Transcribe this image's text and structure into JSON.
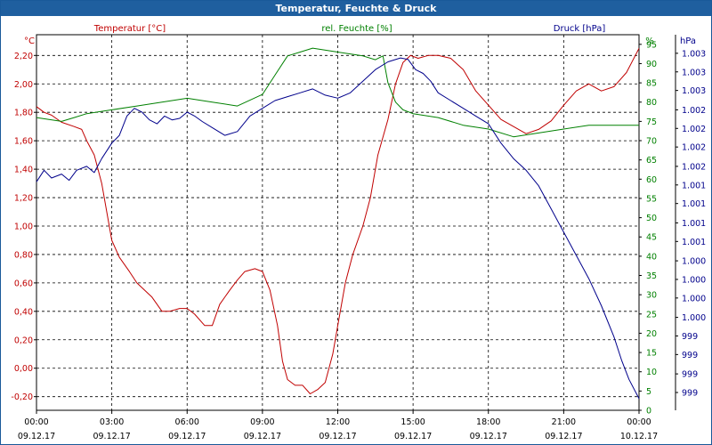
{
  "window": {
    "title": "Temperatur, Feuchte & Druck"
  },
  "chart_data": {
    "type": "line",
    "series": [
      {
        "name": "Temperatur [°C]",
        "unit_label": "°C",
        "axis": "left",
        "color": "#c00000",
        "ylim": [
          -0.2959,
          2.3459
        ],
        "ticks": [
          "-0,20",
          "0,00",
          "0,20",
          "0,40",
          "0,60",
          "0,80",
          "1,00",
          "1,20",
          "1,40",
          "1,60",
          "1,80",
          "2,00",
          "2,20"
        ],
        "tick_values": [
          -0.2,
          0,
          0.2,
          0.4,
          0.6,
          0.8,
          1.0,
          1.2,
          1.4,
          1.6,
          1.8,
          2.0,
          2.2
        ],
        "points": [
          [
            0,
            1.84
          ],
          [
            0.3,
            1.8
          ],
          [
            0.6,
            1.78
          ],
          [
            1,
            1.73
          ],
          [
            1.5,
            1.7
          ],
          [
            1.8,
            1.68
          ],
          [
            2,
            1.6
          ],
          [
            2.3,
            1.5
          ],
          [
            2.6,
            1.3
          ],
          [
            3,
            0.9
          ],
          [
            3.3,
            0.78
          ],
          [
            3.7,
            0.68
          ],
          [
            4,
            0.6
          ],
          [
            4.3,
            0.55
          ],
          [
            4.6,
            0.5
          ],
          [
            5,
            0.4
          ],
          [
            5.3,
            0.4
          ],
          [
            5.7,
            0.42
          ],
          [
            6,
            0.42
          ],
          [
            6.3,
            0.38
          ],
          [
            6.7,
            0.3
          ],
          [
            7,
            0.3
          ],
          [
            7.3,
            0.45
          ],
          [
            7.7,
            0.55
          ],
          [
            8,
            0.62
          ],
          [
            8.3,
            0.68
          ],
          [
            8.7,
            0.7
          ],
          [
            9,
            0.68
          ],
          [
            9.3,
            0.55
          ],
          [
            9.6,
            0.3
          ],
          [
            9.8,
            0.05
          ],
          [
            10,
            -0.08
          ],
          [
            10.3,
            -0.12
          ],
          [
            10.6,
            -0.12
          ],
          [
            10.9,
            -0.18
          ],
          [
            11.2,
            -0.15
          ],
          [
            11.5,
            -0.1
          ],
          [
            11.8,
            0.1
          ],
          [
            12,
            0.3
          ],
          [
            12.3,
            0.6
          ],
          [
            12.6,
            0.8
          ],
          [
            13,
            1.0
          ],
          [
            13.3,
            1.2
          ],
          [
            13.6,
            1.5
          ],
          [
            14,
            1.75
          ],
          [
            14.3,
            2.0
          ],
          [
            14.6,
            2.15
          ],
          [
            14.9,
            2.2
          ],
          [
            15.2,
            2.18
          ],
          [
            15.6,
            2.2
          ],
          [
            16,
            2.2
          ],
          [
            16.5,
            2.18
          ],
          [
            17,
            2.1
          ],
          [
            17.5,
            1.95
          ],
          [
            18,
            1.85
          ],
          [
            18.5,
            1.75
          ],
          [
            19,
            1.7
          ],
          [
            19.5,
            1.65
          ],
          [
            20,
            1.68
          ],
          [
            20.5,
            1.74
          ],
          [
            21,
            1.85
          ],
          [
            21.5,
            1.95
          ],
          [
            22,
            2.0
          ],
          [
            22.5,
            1.95
          ],
          [
            23,
            1.98
          ],
          [
            23.5,
            2.08
          ],
          [
            24,
            2.25
          ]
        ]
      },
      {
        "name": "rel. Feuchte [%]",
        "unit_label": "%",
        "axis": "right1",
        "color": "#008000",
        "ylim": [
          0,
          97.5
        ],
        "ticks": [
          "0",
          "5",
          "10",
          "15",
          "20",
          "25",
          "30",
          "35",
          "40",
          "45",
          "50",
          "55",
          "60",
          "65",
          "70",
          "75",
          "80",
          "85",
          "90",
          "95"
        ],
        "tick_values": [
          0,
          5,
          10,
          15,
          20,
          25,
          30,
          35,
          40,
          45,
          50,
          55,
          60,
          65,
          70,
          75,
          80,
          85,
          90,
          95
        ],
        "points": [
          [
            0,
            76
          ],
          [
            0.5,
            75.5
          ],
          [
            1,
            75
          ],
          [
            1.5,
            76
          ],
          [
            2,
            77
          ],
          [
            3,
            78
          ],
          [
            4,
            79
          ],
          [
            5,
            80
          ],
          [
            6,
            81
          ],
          [
            7,
            80
          ],
          [
            8,
            79
          ],
          [
            9,
            82
          ],
          [
            9.5,
            87
          ],
          [
            10,
            92
          ],
          [
            10.5,
            93
          ],
          [
            11,
            94
          ],
          [
            12,
            93
          ],
          [
            13,
            92
          ],
          [
            13.5,
            91
          ],
          [
            13.8,
            92
          ],
          [
            14,
            85
          ],
          [
            14.3,
            80
          ],
          [
            14.6,
            78
          ],
          [
            15,
            77
          ],
          [
            16,
            76
          ],
          [
            17,
            74
          ],
          [
            18,
            73
          ],
          [
            19,
            71
          ],
          [
            20,
            72
          ],
          [
            21,
            73
          ],
          [
            22,
            74
          ],
          [
            23,
            74
          ],
          [
            24,
            74
          ]
        ]
      },
      {
        "name": "Druck [hPa]",
        "unit_label": "hPa",
        "axis": "right2",
        "color": "#00008b",
        "ylim": [
          998.65,
          1003.5
        ],
        "ticks": [
          "999",
          "999",
          "999",
          "999",
          "1.000",
          "1.000",
          "1.000",
          "1.000",
          "1.001",
          "1.001",
          "1.001",
          "1.001",
          "1.002",
          "1.002",
          "1.002",
          "1.002",
          "1.003",
          "1.003",
          "1.003"
        ],
        "tick_values": [
          998.88,
          999.12,
          999.37,
          999.61,
          999.85,
          1000.1,
          1000.34,
          1000.58,
          1000.83,
          1001.07,
          1001.32,
          1001.56,
          1001.8,
          1002.05,
          1002.29,
          1002.53,
          1002.78,
          1003.02,
          1003.26
        ],
        "points": [
          [
            0,
            1001.6
          ],
          [
            0.3,
            1001.75
          ],
          [
            0.6,
            1001.65
          ],
          [
            1,
            1001.7
          ],
          [
            1.3,
            1001.62
          ],
          [
            1.6,
            1001.75
          ],
          [
            2,
            1001.8
          ],
          [
            2.3,
            1001.72
          ],
          [
            2.6,
            1001.9
          ],
          [
            3,
            1002.1
          ],
          [
            3.3,
            1002.2
          ],
          [
            3.6,
            1002.45
          ],
          [
            3.9,
            1002.55
          ],
          [
            4.2,
            1002.5
          ],
          [
            4.5,
            1002.4
          ],
          [
            4.8,
            1002.35
          ],
          [
            5.1,
            1002.45
          ],
          [
            5.4,
            1002.4
          ],
          [
            5.7,
            1002.42
          ],
          [
            6,
            1002.5
          ],
          [
            6.3,
            1002.45
          ],
          [
            6.6,
            1002.38
          ],
          [
            7,
            1002.3
          ],
          [
            7.5,
            1002.2
          ],
          [
            8,
            1002.25
          ],
          [
            8.5,
            1002.45
          ],
          [
            9,
            1002.55
          ],
          [
            9.5,
            1002.65
          ],
          [
            10,
            1002.7
          ],
          [
            10.5,
            1002.75
          ],
          [
            11,
            1002.8
          ],
          [
            11.5,
            1002.72
          ],
          [
            12,
            1002.68
          ],
          [
            12.5,
            1002.75
          ],
          [
            13,
            1002.9
          ],
          [
            13.5,
            1003.05
          ],
          [
            14,
            1003.15
          ],
          [
            14.5,
            1003.2
          ],
          [
            14.8,
            1003.18
          ],
          [
            15.1,
            1003.05
          ],
          [
            15.4,
            1003.0
          ],
          [
            15.7,
            1002.9
          ],
          [
            16,
            1002.75
          ],
          [
            16.5,
            1002.65
          ],
          [
            17,
            1002.55
          ],
          [
            17.5,
            1002.45
          ],
          [
            18,
            1002.35
          ],
          [
            18.5,
            1002.1
          ],
          [
            19,
            1001.9
          ],
          [
            19.5,
            1001.75
          ],
          [
            20,
            1001.55
          ],
          [
            20.5,
            1001.25
          ],
          [
            21,
            1000.95
          ],
          [
            21.5,
            1000.65
          ],
          [
            22,
            1000.35
          ],
          [
            22.5,
            1000.0
          ],
          [
            23,
            999.6
          ],
          [
            23.3,
            999.3
          ],
          [
            23.6,
            999.05
          ],
          [
            24,
            998.8
          ]
        ]
      }
    ],
    "x": {
      "range_hours": [
        0,
        24
      ],
      "tick_hours": [
        0,
        3,
        6,
        9,
        12,
        15,
        18,
        21,
        24
      ],
      "tick_times": [
        "00:00",
        "03:00",
        "06:00",
        "09:00",
        "12:00",
        "15:00",
        "18:00",
        "21:00",
        "00:00"
      ],
      "tick_dates": [
        "09.12.17",
        "09.12.17",
        "09.12.17",
        "09.12.17",
        "09.12.17",
        "09.12.17",
        "09.12.17",
        "09.12.17",
        "10.12.17"
      ]
    },
    "grid": true,
    "grid_style": "dashed"
  }
}
